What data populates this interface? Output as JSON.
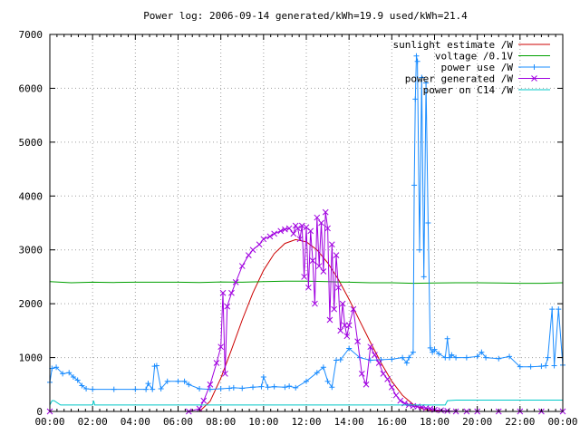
{
  "chart_data": {
    "type": "line",
    "title": "Power log: 2006-09-14 generated/kWh=19.9 used/kWh=21.4",
    "xlabel": "",
    "ylabel": "",
    "xlim": [
      0,
      24
    ],
    "ylim": [
      0,
      7000
    ],
    "grid": true,
    "legend_position": "top-right",
    "x_ticks": [
      "00:00",
      "02:00",
      "04:00",
      "06:00",
      "08:00",
      "10:00",
      "12:00",
      "14:00",
      "16:00",
      "18:00",
      "20:00",
      "22:00",
      "00:00"
    ],
    "y_ticks": [
      "0",
      "1000",
      "2000",
      "3000",
      "4000",
      "5000",
      "6000",
      "7000"
    ],
    "series": [
      {
        "name": "sunlight estimate /W",
        "color": "#cc0000",
        "marker": "none",
        "x": [
          7.0,
          7.5,
          8.0,
          8.5,
          9.0,
          9.5,
          10.0,
          10.5,
          11.0,
          11.5,
          12.0,
          12.5,
          13.0,
          13.5,
          14.0,
          14.5,
          15.0,
          15.5,
          16.0,
          16.5,
          17.0,
          17.5,
          18.0,
          18.5,
          19.0,
          19.5,
          20.0
        ],
        "y": [
          0,
          190,
          620,
          1150,
          1700,
          2200,
          2620,
          2930,
          3120,
          3190,
          3150,
          3000,
          2760,
          2450,
          2080,
          1680,
          1280,
          900,
          560,
          300,
          130,
          40,
          10,
          0,
          0,
          0,
          0
        ]
      },
      {
        "name": "voltage /0.1V",
        "color": "#00a000",
        "marker": "none",
        "x": [
          0.0,
          1.0,
          2.0,
          3.0,
          4.0,
          5.0,
          6.0,
          7.0,
          8.0,
          9.0,
          10.0,
          11.0,
          12.0,
          13.0,
          14.0,
          15.0,
          16.0,
          17.0,
          18.0,
          19.0,
          20.0,
          21.0,
          22.0,
          23.0,
          24.0
        ],
        "y": [
          2410,
          2390,
          2400,
          2395,
          2400,
          2400,
          2400,
          2395,
          2405,
          2400,
          2410,
          2420,
          2420,
          2410,
          2400,
          2390,
          2390,
          2380,
          2385,
          2390,
          2390,
          2385,
          2380,
          2380,
          2390
        ]
      },
      {
        "name": "power use /W",
        "color": "#1a8cff",
        "marker": "plus",
        "x": [
          0.0,
          0.1,
          0.3,
          0.6,
          0.9,
          1.1,
          1.3,
          1.5,
          1.7,
          2.0,
          3.0,
          4.0,
          4.5,
          4.6,
          4.8,
          4.9,
          5.0,
          5.2,
          5.5,
          6.0,
          6.3,
          6.5,
          7.0,
          7.5,
          8.0,
          8.4,
          8.6,
          9.0,
          9.5,
          9.9,
          10.0,
          10.2,
          10.5,
          11.0,
          11.2,
          11.5,
          12.0,
          12.5,
          12.8,
          13.0,
          13.2,
          13.4,
          13.6,
          14.0,
          14.5,
          15.0,
          15.5,
          16.0,
          16.5,
          16.7,
          16.8,
          17.0,
          17.05,
          17.1,
          17.15,
          17.2,
          17.3,
          17.4,
          17.5,
          17.6,
          17.7,
          17.8,
          17.9,
          18.0,
          18.2,
          18.5,
          18.6,
          18.7,
          18.8,
          19.0,
          19.5,
          20.0,
          20.2,
          20.4,
          21.0,
          21.5,
          22.0,
          22.5,
          23.0,
          23.2,
          23.3,
          23.5,
          23.6,
          23.8,
          24.0
        ],
        "y": [
          540,
          800,
          820,
          700,
          720,
          640,
          580,
          480,
          420,
          410,
          410,
          410,
          410,
          520,
          410,
          840,
          850,
          420,
          560,
          560,
          560,
          500,
          420,
          410,
          420,
          430,
          440,
          430,
          450,
          460,
          640,
          450,
          460,
          450,
          470,
          440,
          560,
          720,
          820,
          560,
          450,
          950,
          960,
          1170,
          1000,
          950,
          960,
          970,
          1000,
          900,
          1000,
          1100,
          4200,
          5800,
          6600,
          6500,
          3000,
          6200,
          2500,
          6100,
          3500,
          1180,
          1100,
          1150,
          1070,
          1000,
          1350,
          1000,
          1050,
          1000,
          1000,
          1020,
          1100,
          1000,
          980,
          1020,
          830,
          830,
          840,
          850,
          1000,
          1900,
          850,
          1900,
          860
        ]
      },
      {
        "name": "power generated /W",
        "color": "#a000e0",
        "marker": "cross",
        "x": [
          0.0,
          6.5,
          7.0,
          7.2,
          7.5,
          7.8,
          8.0,
          8.1,
          8.2,
          8.3,
          8.5,
          8.7,
          9.0,
          9.3,
          9.5,
          9.8,
          10.0,
          10.3,
          10.5,
          10.8,
          11.0,
          11.2,
          11.4,
          11.5,
          11.6,
          11.7,
          11.8,
          11.9,
          12.0,
          12.1,
          12.2,
          12.3,
          12.4,
          12.5,
          12.6,
          12.7,
          12.8,
          12.9,
          13.0,
          13.1,
          13.2,
          13.3,
          13.4,
          13.5,
          13.6,
          13.7,
          13.8,
          13.9,
          14.0,
          14.2,
          14.4,
          14.6,
          14.8,
          15.0,
          15.2,
          15.4,
          15.6,
          15.8,
          16.0,
          16.2,
          16.4,
          16.6,
          16.8,
          17.0,
          17.2,
          17.4,
          17.6,
          17.8,
          18.0,
          18.3,
          18.6,
          19.0,
          19.5,
          20.0,
          21.0,
          22.0,
          23.0,
          24.0
        ],
        "y": [
          0,
          0,
          50,
          200,
          500,
          900,
          1200,
          2200,
          700,
          1950,
          2200,
          2400,
          2700,
          2900,
          3000,
          3100,
          3200,
          3250,
          3300,
          3350,
          3380,
          3400,
          3300,
          3450,
          3400,
          3200,
          3450,
          2500,
          3420,
          2300,
          3350,
          2800,
          2000,
          3600,
          2700,
          3500,
          2600,
          3700,
          3400,
          1700,
          3100,
          1900,
          2900,
          2300,
          1500,
          2000,
          1600,
          1400,
          1600,
          1900,
          1300,
          700,
          500,
          1200,
          1050,
          900,
          700,
          600,
          450,
          300,
          200,
          150,
          120,
          100,
          90,
          80,
          60,
          50,
          30,
          20,
          10,
          0,
          0,
          0,
          0,
          0,
          0,
          0
        ]
      },
      {
        "name": "power on C14 /W",
        "color": "#00c8c8",
        "marker": "none",
        "x": [
          0.0,
          0.1,
          0.2,
          0.5,
          1.0,
          2.0,
          2.05,
          2.1,
          3.0,
          4.0,
          5.0,
          6.0,
          7.0,
          8.0,
          9.0,
          10.0,
          11.0,
          12.0,
          13.0,
          14.0,
          15.0,
          16.0,
          17.0,
          18.0,
          18.5,
          18.6,
          19.0,
          20.0,
          21.0,
          22.0,
          23.0,
          24.0
        ],
        "y": [
          120,
          200,
          200,
          120,
          120,
          120,
          200,
          120,
          120,
          120,
          120,
          120,
          120,
          120,
          120,
          120,
          120,
          120,
          120,
          120,
          120,
          120,
          120,
          120,
          120,
          200,
          210,
          210,
          210,
          210,
          210,
          210
        ]
      }
    ]
  }
}
